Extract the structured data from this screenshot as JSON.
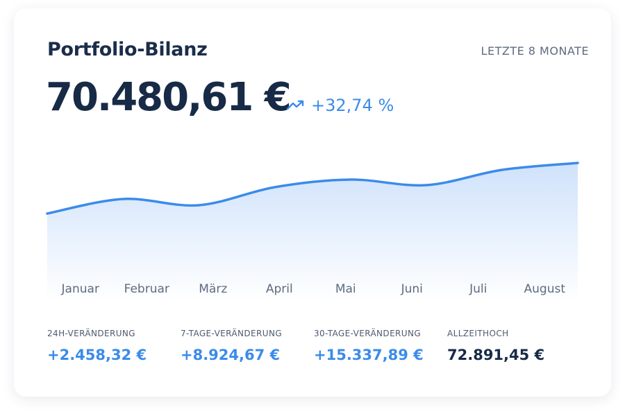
{
  "header": {
    "title": "Portfolio-Bilanz",
    "period": "LETZTE 8 MONATE",
    "balance": "70.480,61 €",
    "change": "+32,74 %"
  },
  "chart_data": {
    "type": "area",
    "categories": [
      "Januar",
      "Februar",
      "März",
      "April",
      "Mai",
      "Juni",
      "Juli",
      "August"
    ],
    "values": [
      53100,
      58100,
      55960,
      62150,
      64760,
      62860,
      68100,
      70480
    ],
    "color": "#3b8bea"
  },
  "stats": [
    {
      "label": "24H-VERÄNDERUNG",
      "value": "+2.458,32 €"
    },
    {
      "label": "7-TAGE-VERÄNDERUNG",
      "value": "+8.924,67 €"
    },
    {
      "label": "30-TAGE-VERÄNDERUNG",
      "value": "+15.337,89 €"
    },
    {
      "label": "ALLZEITHOCH",
      "value": "72.891,45 €"
    }
  ]
}
